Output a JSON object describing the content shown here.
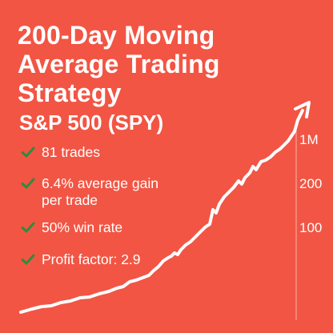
{
  "header": {
    "title": "200-Day Moving Average Trading Strategy",
    "subtitle": "S&P 500 (SPY)"
  },
  "stats": [
    {
      "icon": "check-icon",
      "label": "81 trades"
    },
    {
      "icon": "check-icon",
      "label": "6.4% average gain per trade"
    },
    {
      "icon": "check-icon",
      "label": "50% win rate"
    },
    {
      "icon": "check-icon",
      "label": "Profit factor: 2.9"
    }
  ],
  "axis": {
    "labels": [
      "1M",
      "200",
      "100"
    ]
  },
  "colors": {
    "background": "#f25544",
    "check": "#2e8b3e",
    "line": "#ffffff"
  }
}
